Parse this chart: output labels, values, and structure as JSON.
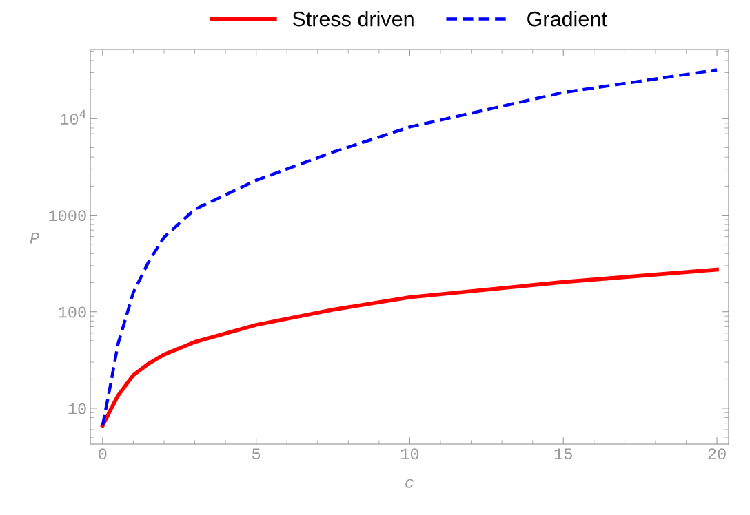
{
  "chart_data": {
    "type": "line",
    "xlabel": "c",
    "ylabel": "P",
    "log": "y",
    "grid": false,
    "legend": "top",
    "marker": "none",
    "xlim": [
      -0.4,
      20.38
    ],
    "ylim": [
      4.25,
      52000
    ],
    "xticks": [
      0,
      5,
      10,
      15,
      20
    ],
    "yticks": [
      10,
      100,
      1000,
      {
        "value": 10000,
        "label": "10$^{4}$"
      }
    ],
    "series": [
      {
        "name": "Stress driven",
        "color": "#ff0000",
        "line_style": "solid",
        "x": [
          0,
          0.25,
          0.5,
          1,
          1.5,
          2,
          3,
          5,
          7.5,
          10,
          15,
          20
        ],
        "values": [
          6.6,
          9.5,
          13.5,
          22,
          29,
          36,
          48.5,
          73,
          105,
          141,
          203,
          273
        ]
      },
      {
        "name": "Gradient",
        "color": "#0000ff",
        "line_style": "dashed",
        "x": [
          0,
          0.25,
          0.5,
          1,
          1.5,
          2,
          3,
          5,
          7.5,
          10,
          15,
          20
        ],
        "values": [
          6.6,
          17,
          46,
          158,
          330,
          590,
          1150,
          2300,
          4500,
          8200,
          18700,
          32000
        ]
      }
    ]
  }
}
